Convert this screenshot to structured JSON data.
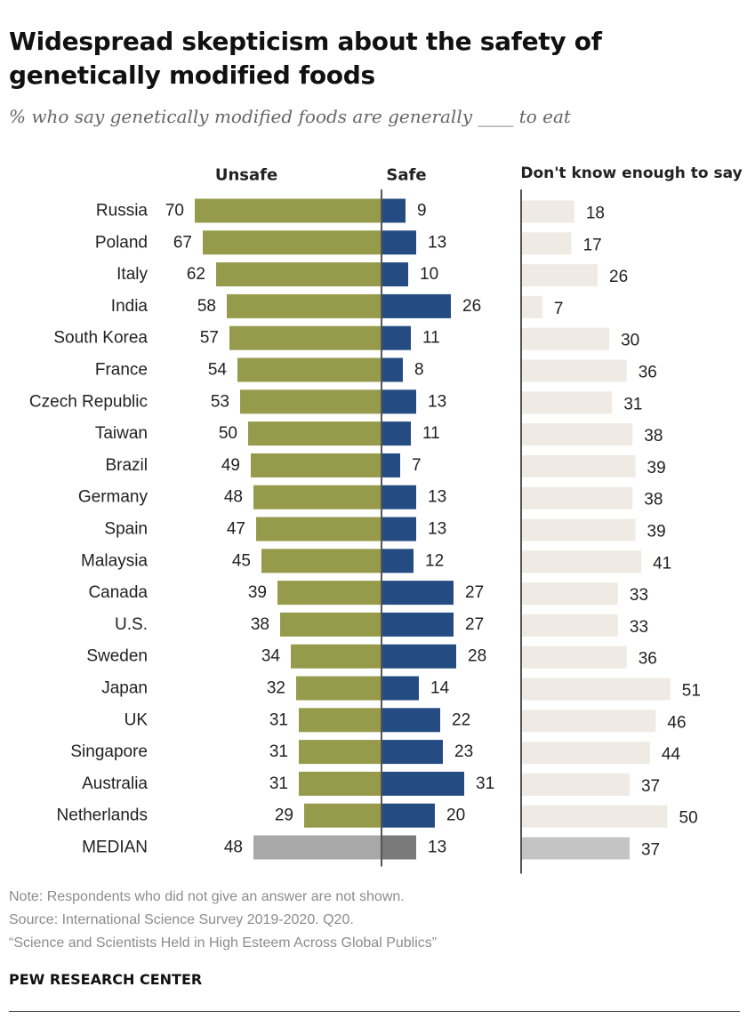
{
  "title": "Widespread skepticism about the safety of genetically modified foods",
  "subtitle": "% who say genetically modified foods are generally ____ to eat",
  "notes": {
    "note": "Note: Respondents who did not give an answer are not shown.",
    "source": "Source: International Science Survey 2019-2020. Q20.",
    "report": "“Science and Scientists Held in High Esteem Across Global Publics”"
  },
  "credit": "PEW RESEARCH CENTER",
  "colors": {
    "unsafe": "#959b4a",
    "safe": "#244c82",
    "dont_know": "#efebe4",
    "median_unsafe": "#a8a8a8",
    "median_safe": "#7a7a7a",
    "median_dont_know": "#c4c4c4",
    "axis": "#555555"
  },
  "chart_data": {
    "type": "bar",
    "orientation": "horizontal",
    "layout": "diverging bars (Unsafe vs Safe) with separate Don't know column",
    "categories": [
      "Russia",
      "Poland",
      "Italy",
      "India",
      "South Korea",
      "France",
      "Czech Republic",
      "Taiwan",
      "Brazil",
      "Germany",
      "Spain",
      "Malaysia",
      "Canada",
      "U.S.",
      "Sweden",
      "Japan",
      "UK",
      "Singapore",
      "Australia",
      "Netherlands",
      "MEDIAN"
    ],
    "series": [
      {
        "name": "Unsafe",
        "values": [
          70,
          67,
          62,
          58,
          57,
          54,
          53,
          50,
          49,
          48,
          47,
          45,
          39,
          38,
          34,
          32,
          31,
          31,
          31,
          29,
          48
        ]
      },
      {
        "name": "Safe",
        "values": [
          9,
          13,
          10,
          26,
          11,
          8,
          13,
          11,
          7,
          13,
          13,
          12,
          27,
          27,
          28,
          14,
          22,
          23,
          31,
          20,
          13
        ]
      },
      {
        "name": "Don't know enough to say",
        "values": [
          18,
          17,
          26,
          7,
          30,
          36,
          31,
          38,
          39,
          38,
          39,
          41,
          33,
          33,
          36,
          51,
          46,
          44,
          37,
          50,
          37
        ]
      }
    ],
    "xlabel": "",
    "ylabel": "",
    "legend": "column headers above bars"
  }
}
